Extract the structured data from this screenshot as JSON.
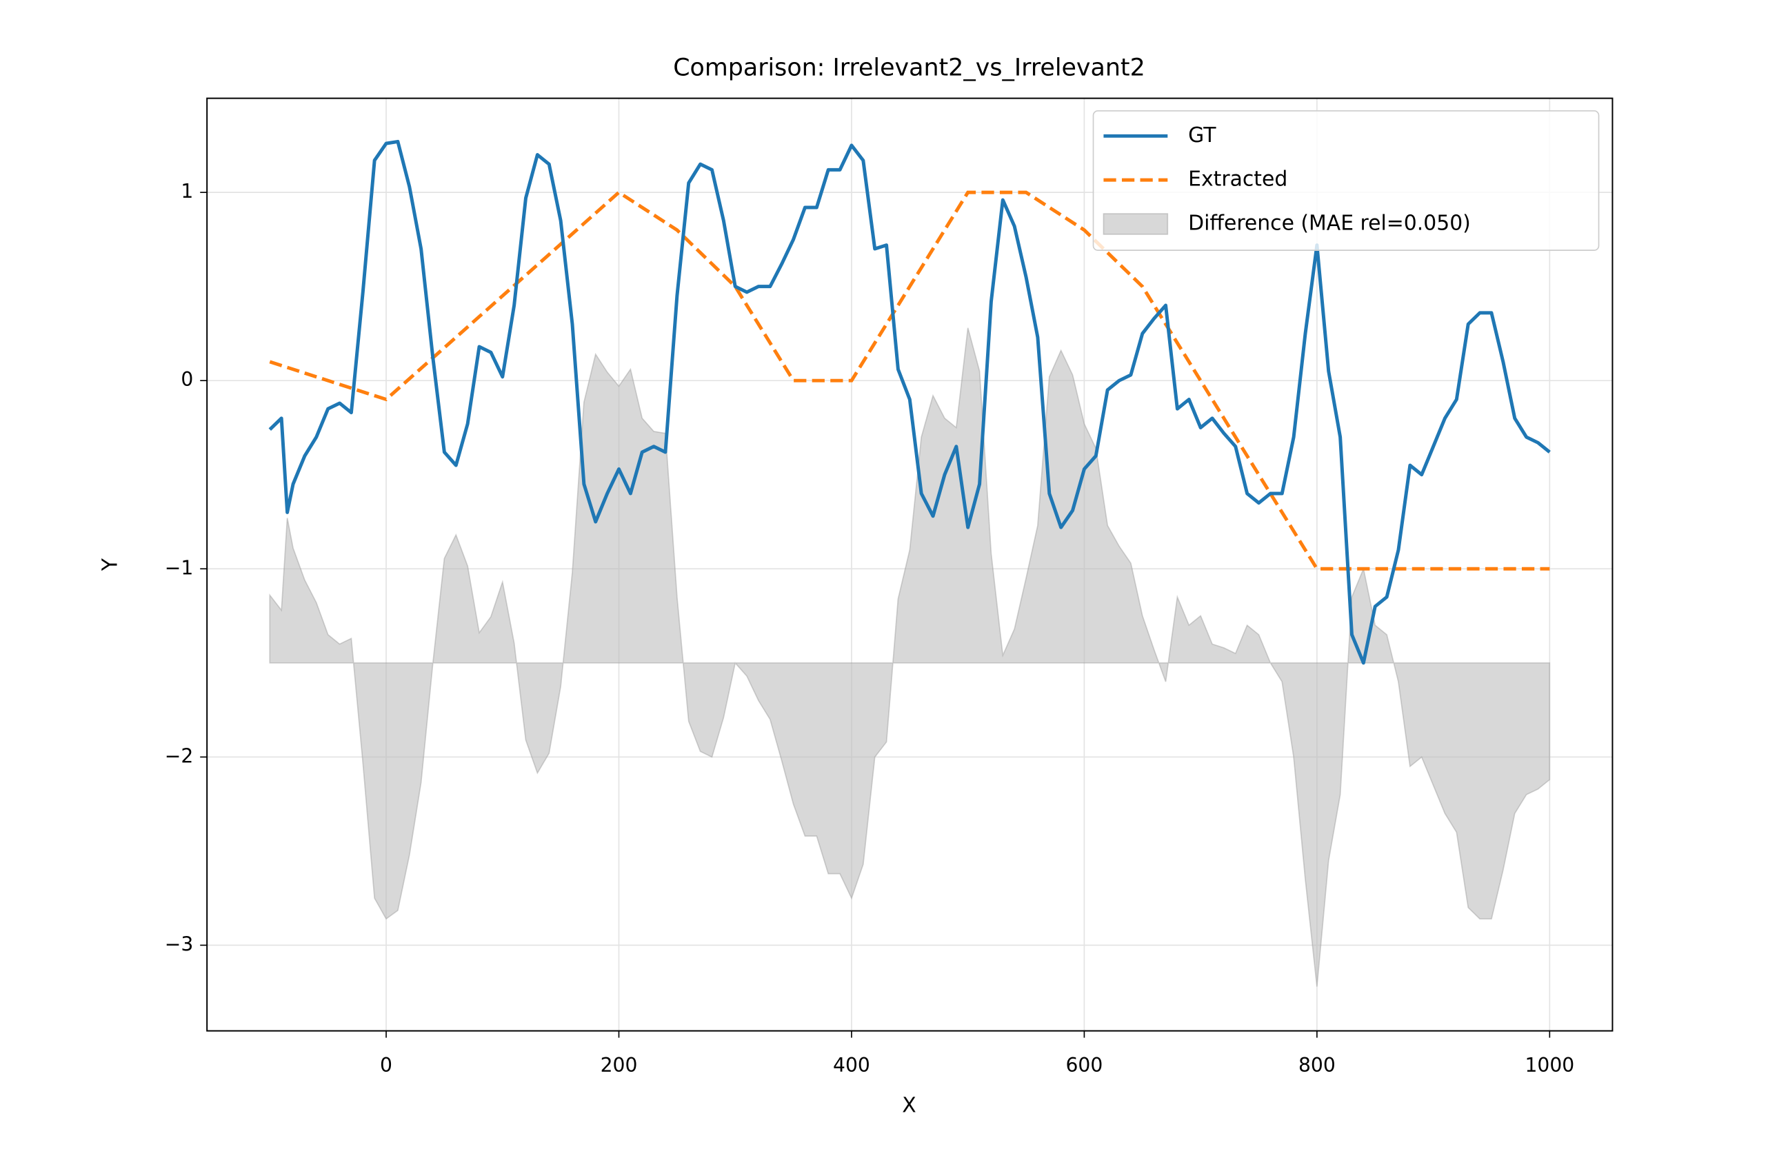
{
  "chart_data": {
    "type": "line",
    "title": "Comparison: Irrelevant2_vs_Irrelevant2",
    "x_label": "X",
    "y_label": "Y",
    "xlim": [
      -154,
      1054
    ],
    "ylim": [
      -3.455,
      1.5
    ],
    "xticks": [
      0,
      200,
      400,
      600,
      800,
      1000
    ],
    "yticks": [
      {
        "value": -3,
        "label": "−3"
      },
      {
        "value": -2,
        "label": "−2"
      },
      {
        "value": -1,
        "label": "−1"
      },
      0,
      1
    ],
    "grid": true,
    "legend": "upper right",
    "series": [
      {
        "name": "GT",
        "color": "#1f77b4",
        "style": "solid",
        "x": [
          -100,
          -90,
          -85,
          -80,
          -70,
          -60,
          -50,
          -40,
          -30,
          -20,
          -10,
          0,
          10,
          20,
          30,
          40,
          50,
          60,
          70,
          80,
          90,
          100,
          110,
          120,
          130,
          140,
          150,
          160,
          170,
          180,
          190,
          200,
          210,
          220,
          230,
          240,
          250,
          260,
          270,
          280,
          290,
          300,
          310,
          320,
          330,
          340,
          350,
          360,
          370,
          380,
          390,
          400,
          410,
          420,
          430,
          440,
          450,
          460,
          470,
          480,
          490,
          500,
          510,
          520,
          530,
          540,
          550,
          560,
          570,
          580,
          590,
          600,
          610,
          620,
          630,
          640,
          650,
          660,
          670,
          680,
          690,
          700,
          710,
          720,
          730,
          740,
          750,
          760,
          770,
          780,
          790,
          800,
          810,
          820,
          830,
          840,
          850,
          860,
          870,
          880,
          890,
          900,
          910,
          920,
          930,
          940,
          950,
          960,
          970,
          980,
          990,
          1000
        ],
        "values": [
          -0.26,
          -0.2,
          -0.7,
          -0.55,
          -0.4,
          -0.3,
          -0.15,
          -0.12,
          -0.17,
          0.47,
          1.17,
          1.26,
          1.27,
          1.03,
          0.7,
          0.13,
          -0.38,
          -0.45,
          -0.23,
          0.18,
          0.15,
          0.02,
          0.4,
          0.97,
          1.2,
          1.15,
          0.85,
          0.3,
          -0.55,
          -0.75,
          -0.6,
          -0.47,
          -0.6,
          -0.38,
          -0.35,
          -0.38,
          0.45,
          1.05,
          1.15,
          1.12,
          0.85,
          0.5,
          0.47,
          0.5,
          0.5,
          0.62,
          0.75,
          0.92,
          0.92,
          1.12,
          1.12,
          1.25,
          1.17,
          0.7,
          0.72,
          0.06,
          -0.1,
          -0.6,
          -0.72,
          -0.5,
          -0.35,
          -0.78,
          -0.55,
          0.42,
          0.96,
          0.82,
          0.55,
          0.23,
          -0.6,
          -0.78,
          -0.69,
          -0.47,
          -0.4,
          -0.05,
          0.0,
          0.03,
          0.25,
          0.33,
          0.4,
          -0.15,
          -0.1,
          -0.25,
          -0.2,
          -0.28,
          -0.35,
          -0.6,
          -0.65,
          -0.6,
          -0.6,
          -0.3,
          0.25,
          0.72,
          0.05,
          -0.3,
          -1.35,
          -1.5,
          -1.2,
          -1.15,
          -0.9,
          -0.45,
          -0.5,
          -0.35,
          -0.2,
          -0.1,
          0.3,
          0.36,
          0.36,
          0.1,
          -0.2,
          -0.3,
          -0.33,
          -0.38
        ]
      },
      {
        "name": "Extracted",
        "color": "#ff7f0e",
        "style": "dashed",
        "x": [
          -100,
          0,
          200,
          250,
          300,
          350,
          400,
          500,
          550,
          600,
          650,
          700,
          800,
          1000
        ],
        "values": [
          0.1,
          -0.1,
          1,
          0.8,
          0.5,
          0,
          0,
          1,
          1,
          0.8,
          0.5,
          0,
          -1,
          -1
        ]
      },
      {
        "name": "Difference (MAE rel=0.050)",
        "color": "#bbbbbb",
        "style": "fill",
        "baseline": -1.5,
        "x": [
          -100,
          -90,
          -85,
          -80,
          -70,
          -60,
          -50,
          -40,
          -30,
          -20,
          -10,
          0,
          10,
          20,
          30,
          40,
          50,
          60,
          70,
          80,
          90,
          100,
          110,
          120,
          130,
          140,
          150,
          160,
          170,
          180,
          190,
          200,
          210,
          220,
          230,
          240,
          250,
          260,
          270,
          280,
          290,
          300,
          310,
          320,
          330,
          340,
          350,
          360,
          370,
          380,
          390,
          400,
          410,
          420,
          430,
          440,
          450,
          460,
          470,
          480,
          490,
          500,
          510,
          520,
          530,
          540,
          550,
          560,
          570,
          580,
          590,
          600,
          610,
          620,
          630,
          640,
          650,
          660,
          670,
          680,
          690,
          700,
          710,
          720,
          730,
          740,
          750,
          760,
          770,
          780,
          790,
          800,
          810,
          820,
          830,
          840,
          850,
          860,
          870,
          880,
          890,
          900,
          910,
          920,
          930,
          940,
          950,
          960,
          970,
          980,
          990,
          1000
        ],
        "values": [
          -1.14,
          -1.22,
          -0.73,
          -0.89,
          -1.06,
          -1.18,
          -1.35,
          -1.4,
          -1.37,
          -2.03,
          -2.75,
          -2.86,
          -2.815,
          -2.52,
          -2.135,
          -1.51,
          -0.945,
          -0.82,
          -0.985,
          -1.34,
          -1.255,
          -1.07,
          -1.395,
          -1.91,
          -2.085,
          -1.98,
          -1.625,
          -1.02,
          -0.115,
          0.14,
          0.045,
          -0.03,
          0.06,
          -0.2,
          -0.27,
          -0.28,
          -1.15,
          -1.81,
          -1.97,
          -2.0,
          -1.79,
          -1.5,
          -1.57,
          -1.7,
          -1.8,
          -2.02,
          -2.25,
          -2.42,
          -2.42,
          -2.62,
          -2.62,
          -2.75,
          -2.57,
          -2.0,
          -1.92,
          -1.16,
          -0.9,
          -0.3,
          -0.08,
          -0.2,
          -0.25,
          0.28,
          0.05,
          -0.92,
          -1.46,
          -1.32,
          -1.05,
          -0.77,
          0.02,
          0.16,
          0.03,
          -0.23,
          -0.36,
          -0.77,
          -0.88,
          -0.97,
          -1.25,
          -1.43,
          -1.6,
          -1.15,
          -1.3,
          -1.25,
          -1.4,
          -1.42,
          -1.45,
          -1.3,
          -1.35,
          -1.5,
          -1.6,
          -2.0,
          -2.65,
          -3.22,
          -2.55,
          -2.2,
          -1.15,
          -1.0,
          -1.3,
          -1.35,
          -1.6,
          -2.05,
          -2.0,
          -2.15,
          -2.3,
          -2.4,
          -2.8,
          -2.86,
          -2.86,
          -2.6,
          -2.3,
          -2.2,
          -2.17,
          -2.12
        ]
      }
    ]
  }
}
